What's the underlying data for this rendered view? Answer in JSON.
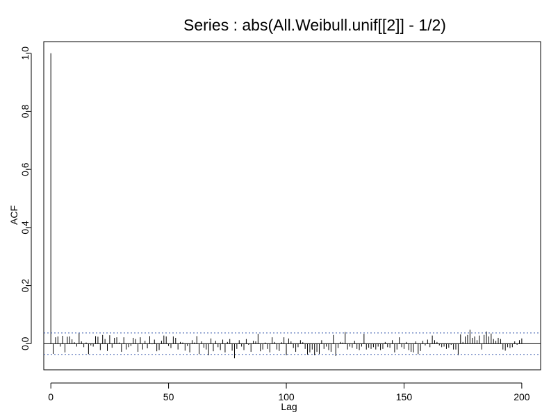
{
  "chart_data": {
    "type": "bar",
    "title": "Series : abs(All.Weibull.unif[[2]] - 1/2)",
    "xlabel": "Lag",
    "ylabel": "ACF",
    "xlim": [
      -3,
      208
    ],
    "ylim": [
      -0.09,
      1.04
    ],
    "xticks": [
      0,
      50,
      100,
      150,
      200
    ],
    "xtick_labels": [
      "0",
      "50",
      "100",
      "150",
      "200"
    ],
    "yticks": [
      0.0,
      0.2,
      0.4,
      0.6,
      0.8,
      1.0
    ],
    "ytick_labels": [
      "0.0",
      "0.2",
      "0.4",
      "0.6",
      "0.8",
      "1.0"
    ],
    "confidence_bounds": [
      0.037,
      -0.037
    ],
    "zero_line": true,
    "series": [
      {
        "lags": [
          0,
          1,
          2,
          3,
          4,
          5,
          6,
          7,
          8,
          9,
          10,
          11,
          12,
          13,
          14,
          15,
          16,
          17,
          18,
          19,
          20,
          21,
          22,
          23,
          24,
          25,
          26,
          27,
          28,
          29,
          30,
          31,
          32,
          33,
          34,
          35,
          36,
          37,
          38,
          39,
          40,
          41,
          42,
          43,
          44,
          45,
          46,
          47,
          48,
          49,
          50,
          51,
          52,
          53,
          54,
          55,
          56,
          57,
          58,
          59,
          60,
          61,
          62,
          63,
          64,
          65,
          66,
          67,
          68,
          69,
          70,
          71,
          72,
          73,
          74,
          75,
          76,
          77,
          78,
          79,
          80,
          81,
          82,
          83,
          84,
          85,
          86,
          87,
          88,
          89,
          90,
          91,
          92,
          93,
          94,
          95,
          96,
          97,
          98,
          99,
          100,
          101,
          102,
          103,
          104,
          105,
          106,
          107,
          108,
          109,
          110,
          111,
          112,
          113,
          114,
          115,
          116,
          117,
          118,
          119,
          120,
          121,
          122,
          123,
          124,
          125,
          126,
          127,
          128,
          129,
          130,
          131,
          132,
          133,
          134,
          135,
          136,
          137,
          138,
          139,
          140,
          141,
          142,
          143,
          144,
          145,
          146,
          147,
          148,
          149,
          150,
          151,
          152,
          153,
          154,
          155,
          156,
          157,
          158,
          159,
          160,
          161,
          162,
          163,
          164,
          165,
          166,
          167,
          168,
          169,
          170,
          171,
          172,
          173,
          174,
          175,
          176,
          177,
          178,
          179,
          180,
          181,
          182,
          183,
          184,
          185,
          186,
          187,
          188,
          189,
          190,
          191,
          192,
          193,
          194,
          195,
          196,
          197,
          198,
          199,
          200
        ],
        "values": [
          1.0,
          -0.035,
          0.022,
          0.025,
          -0.01,
          0.027,
          -0.03,
          0.024,
          0.025,
          0.015,
          0.005,
          -0.01,
          0.036,
          0.008,
          -0.012,
          0.004,
          -0.036,
          -0.006,
          -0.01,
          0.026,
          0.024,
          -0.022,
          0.03,
          0.016,
          -0.025,
          0.029,
          -0.014,
          0.02,
          0.022,
          0.004,
          -0.028,
          0.022,
          -0.02,
          -0.012,
          -0.008,
          0.02,
          0.016,
          -0.028,
          0.022,
          -0.02,
          0.01,
          -0.016,
          0.026,
          -0.002,
          0.014,
          -0.026,
          -0.022,
          0.01,
          0.028,
          0.025,
          -0.008,
          -0.015,
          0.025,
          0.02,
          -0.02,
          0.006,
          0.004,
          -0.024,
          -0.008,
          -0.03,
          0.012,
          0.004,
          0.026,
          -0.036,
          0.008,
          -0.014,
          -0.02,
          -0.04,
          0.018,
          -0.026,
          0.01,
          -0.012,
          -0.022,
          0.014,
          -0.03,
          0.006,
          0.016,
          -0.024,
          -0.05,
          -0.018,
          0.012,
          -0.01,
          -0.022,
          0.016,
          -0.004,
          -0.028,
          0.01,
          0.008,
          0.034,
          -0.026,
          -0.02,
          0.004,
          -0.018,
          -0.03,
          0.022,
          0.006,
          -0.02,
          -0.025,
          0.005,
          0.022,
          -0.04,
          0.018,
          0.008,
          -0.015,
          -0.028,
          -0.012,
          0.012,
          0.005,
          -0.018,
          -0.038,
          -0.03,
          -0.02,
          -0.04,
          -0.028,
          -0.035,
          0.012,
          -0.018,
          -0.01,
          -0.022,
          -0.028,
          0.03,
          -0.042,
          -0.015,
          0.006,
          0.004,
          0.04,
          -0.02,
          -0.01,
          -0.014,
          0.01,
          -0.018,
          -0.022,
          -0.01,
          0.034,
          -0.02,
          -0.014,
          -0.018,
          -0.012,
          -0.02,
          -0.01,
          -0.022,
          -0.018,
          0.006,
          -0.012,
          -0.014,
          0.012,
          -0.03,
          -0.02,
          0.022,
          -0.012,
          -0.018,
          0.006,
          -0.022,
          -0.028,
          -0.03,
          0.008,
          -0.036,
          -0.025,
          0.01,
          -0.006,
          0.014,
          -0.012,
          0.028,
          0.012,
          0.006,
          -0.006,
          -0.012,
          -0.01,
          -0.018,
          -0.014,
          -0.004,
          -0.02,
          -0.02,
          -0.04,
          0.032,
          0.006,
          0.025,
          0.03,
          0.048,
          0.02,
          0.025,
          0.012,
          0.028,
          -0.02,
          0.03,
          0.042,
          0.025,
          0.035,
          0.016,
          0.01,
          0.02,
          0.016,
          -0.02,
          -0.024,
          -0.012,
          -0.015,
          -0.012,
          0.008,
          -0.004,
          0.012,
          0.018,
          -0.025,
          0.014,
          0.008
        ]
      }
    ]
  }
}
